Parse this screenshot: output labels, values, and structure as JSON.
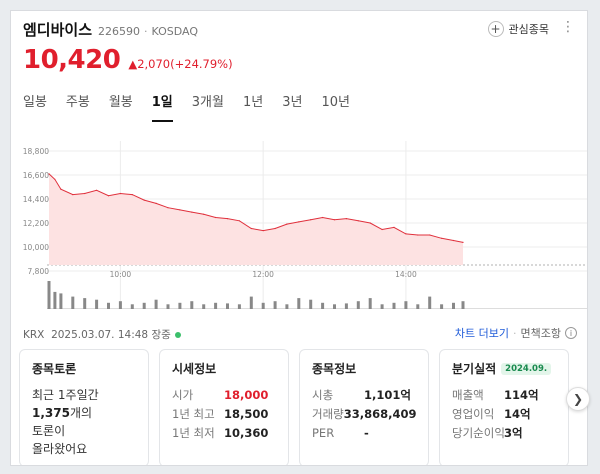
{
  "stock": {
    "name": "엠디바이스",
    "code": "226590",
    "dot": "·",
    "market": "KOSDAQ"
  },
  "header": {
    "fav_label": "관심종목",
    "fav_icon": "plus-icon",
    "more_icon": "kebab-icon"
  },
  "price": {
    "current": "10,420",
    "arrow": "▲",
    "change": "2,070(+24.79%)",
    "color": "#e01f2d"
  },
  "tabs": [
    "일봉",
    "주봉",
    "월봉",
    "1일",
    "3개월",
    "1년",
    "3년",
    "10년"
  ],
  "active_tab": "1일",
  "meta": {
    "exchange": "KRX",
    "datetime": "2025.03.07. 14:48 장중"
  },
  "links": {
    "chart_more": "차트 더보기",
    "sep": "·",
    "disclaimer": "면책조항"
  },
  "chart_data": {
    "type": "area",
    "y_ticks": [
      "18,800",
      "16,600",
      "14,400",
      "12,200",
      "10,000",
      "7,800"
    ],
    "x_ticks": [
      "10:00",
      "12:00",
      "14:00"
    ],
    "ylim": [
      7800,
      18800
    ],
    "prev_close": 8350,
    "colors": {
      "line": "#e0303c",
      "fill": "#fde2e2",
      "volume": "#888888",
      "grid": "#ececec"
    },
    "x": [
      "09:00",
      "09:05",
      "09:10",
      "09:20",
      "09:30",
      "09:40",
      "09:50",
      "10:00",
      "10:10",
      "10:20",
      "10:30",
      "10:40",
      "10:50",
      "11:00",
      "11:10",
      "11:20",
      "11:30",
      "11:40",
      "11:50",
      "12:00",
      "12:10",
      "12:20",
      "12:30",
      "12:40",
      "12:50",
      "13:00",
      "13:10",
      "13:20",
      "13:30",
      "13:40",
      "13:50",
      "14:00",
      "14:10",
      "14:20",
      "14:30",
      "14:40",
      "14:48"
    ],
    "price": [
      16700,
      16200,
      15300,
      14800,
      14900,
      15200,
      14700,
      14900,
      14800,
      14300,
      14000,
      13600,
      13400,
      13200,
      13000,
      12700,
      12600,
      12400,
      11700,
      11500,
      11700,
      12100,
      12300,
      12500,
      12700,
      12500,
      12600,
      12400,
      12200,
      11600,
      11800,
      11200,
      11100,
      11100,
      10800,
      10600,
      10420
    ],
    "volume": [
      90,
      55,
      50,
      40,
      35,
      30,
      20,
      25,
      15,
      20,
      30,
      15,
      20,
      25,
      15,
      20,
      18,
      15,
      40,
      20,
      25,
      15,
      35,
      30,
      20,
      15,
      18,
      25,
      35,
      15,
      20,
      25,
      15,
      40,
      15,
      20,
      25
    ]
  },
  "panels": {
    "discussion": {
      "title": "종목토론",
      "lines": [
        "최근 1주일간",
        "1,375",
        "개의",
        "토론이",
        "올라왔어요"
      ]
    },
    "quote": {
      "title": "시세정보",
      "rows": [
        {
          "k": "시가",
          "v": "18,000"
        },
        {
          "k": "1년 최고",
          "v": "18,500"
        },
        {
          "k": "1년 최저",
          "v": "10,360"
        }
      ]
    },
    "company": {
      "title": "종목정보",
      "rows": [
        {
          "k": "시총",
          "v": "1,101억"
        },
        {
          "k": "거래량",
          "v": "33,868,409"
        },
        {
          "k": "PER",
          "v": "-"
        }
      ]
    },
    "quarter": {
      "title": "분기실적",
      "badge": "2024.09.",
      "rows": [
        {
          "k": "매출액",
          "v": "114억"
        },
        {
          "k": "영업이익",
          "v": "14억"
        },
        {
          "k": "당기순이익",
          "v": "3억"
        }
      ]
    }
  },
  "next_icon": "chevron-right-icon"
}
